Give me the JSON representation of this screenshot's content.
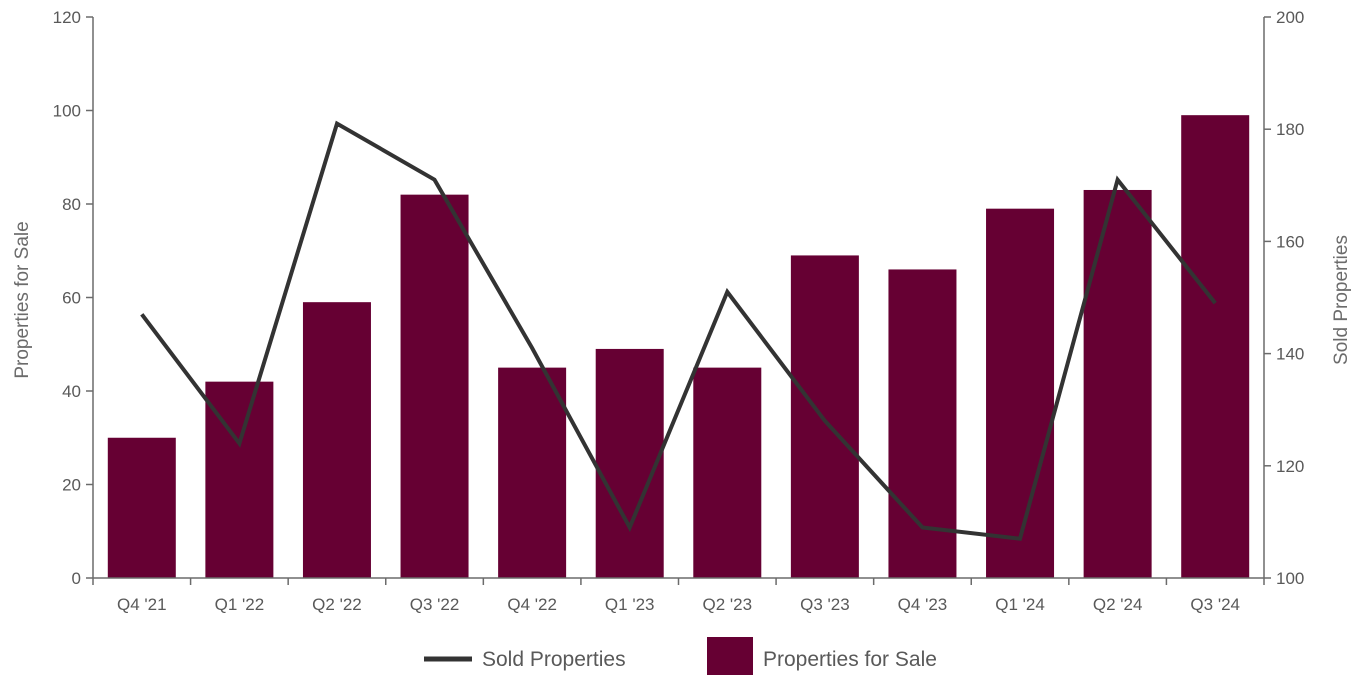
{
  "chart_data": {
    "type": "bar",
    "categories": [
      "Q4 '21",
      "Q1 '22",
      "Q2 '22",
      "Q3 '22",
      "Q4 '22",
      "Q1 '23",
      "Q2 '23",
      "Q3 '23",
      "Q4 '23",
      "Q1 '24",
      "Q2 '24",
      "Q3 '24"
    ],
    "series": [
      {
        "name": "Properties for Sale",
        "type": "bar",
        "axis": "left",
        "color": "#660033",
        "values": [
          30,
          42,
          59,
          82,
          45,
          49,
          45,
          69,
          66,
          79,
          83,
          99
        ]
      },
      {
        "name": "Sold Properties",
        "type": "line",
        "axis": "right",
        "color": "#333333",
        "values": [
          147,
          124,
          181,
          171,
          141,
          109,
          151,
          128,
          109,
          107,
          171,
          149
        ]
      }
    ],
    "ylabel": "Properties for Sale",
    "ylim": [
      0,
      120
    ],
    "yticks": [
      0,
      20,
      40,
      60,
      80,
      100,
      120
    ],
    "y2label": "Sold Properties",
    "y2lim": [
      100,
      200
    ],
    "y2ticks": [
      100,
      120,
      140,
      160,
      180,
      200
    ],
    "grid": false,
    "legend_position": "bottom-center",
    "legend": [
      {
        "label": "Sold Properties",
        "marker": "line",
        "color": "#333333"
      },
      {
        "label": "Properties for Sale",
        "marker": "square",
        "color": "#660033"
      }
    ]
  }
}
